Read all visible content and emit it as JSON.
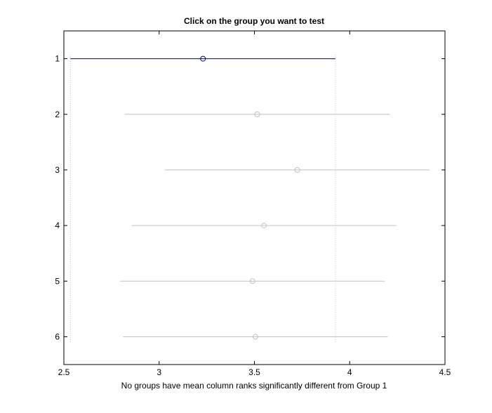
{
  "chart_data": {
    "type": "scatter",
    "subtype": "multiple-comparison-intervals",
    "title": "Click on the group you want to test",
    "xlabel": "No groups have mean column ranks significantly different from Group 1",
    "ylabel": "",
    "xlim": [
      2.5,
      4.5
    ],
    "ylim": [
      0.5,
      6.5
    ],
    "xticks": [
      2.5,
      3,
      3.5,
      4,
      4.5
    ],
    "xtick_labels": [
      "2.5",
      "3",
      "3.5",
      "4",
      "4.5"
    ],
    "yticks": [
      1,
      2,
      3,
      4,
      5,
      6
    ],
    "ytick_labels": [
      "1",
      "2",
      "3",
      "4",
      "5",
      "6"
    ],
    "y_reversed": true,
    "reference_lines": {
      "x": [
        2.535,
        3.925
      ]
    },
    "groups": [
      {
        "label": "1",
        "mean": 3.23,
        "lower": 2.535,
        "upper": 3.925,
        "selected": true
      },
      {
        "label": "2",
        "mean": 3.515,
        "lower": 2.82,
        "upper": 4.21,
        "selected": false
      },
      {
        "label": "3",
        "mean": 3.725,
        "lower": 3.03,
        "upper": 4.42,
        "selected": false
      },
      {
        "label": "4",
        "mean": 3.55,
        "lower": 2.855,
        "upper": 4.245,
        "selected": false
      },
      {
        "label": "5",
        "mean": 3.49,
        "lower": 2.795,
        "upper": 4.185,
        "selected": false
      },
      {
        "label": "6",
        "mean": 3.505,
        "lower": 2.81,
        "upper": 4.2,
        "selected": false
      }
    ]
  },
  "colors": {
    "selected": "#000080",
    "other": "#c0c0c0",
    "reference_line": "#c8c8c8",
    "axes": "#000000",
    "background": "#ffffff"
  }
}
